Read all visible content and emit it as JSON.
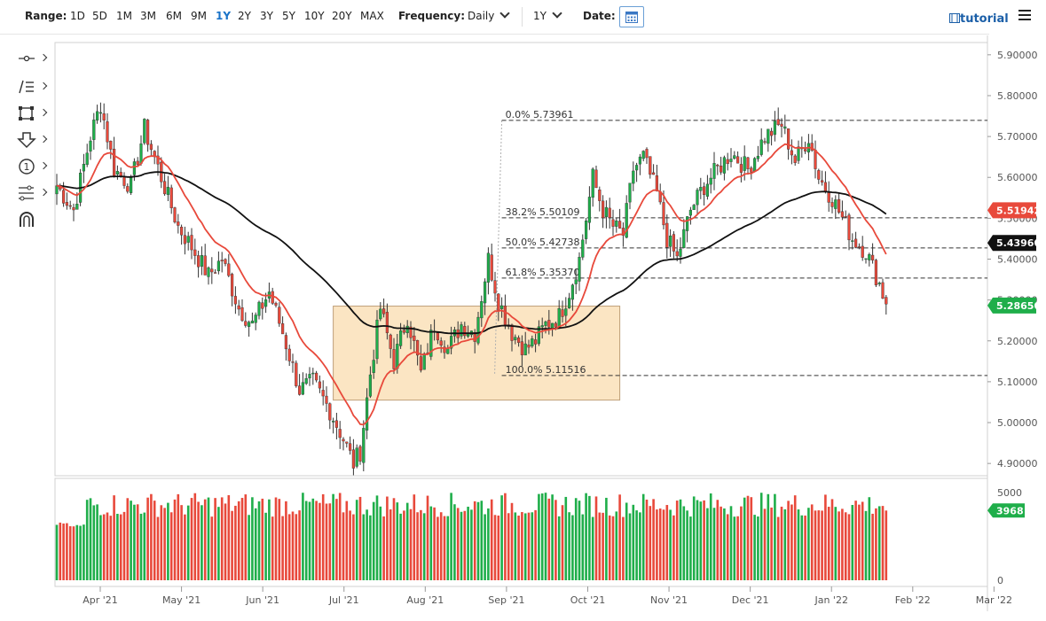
{
  "toolbar": {
    "range_label": "Range:",
    "ranges": [
      "1D",
      "5D",
      "1M",
      "3M",
      "6M",
      "9M",
      "1Y",
      "2Y",
      "3Y",
      "5Y",
      "10Y",
      "20Y",
      "MAX"
    ],
    "active_range": "1Y",
    "frequency_label": "Frequency:",
    "frequency_value": "Daily",
    "period_value": "1Y",
    "date_label": "Date:",
    "tutorial_label": "tutorial"
  },
  "drawing_tools": [
    "crosshair-icon",
    "trendline-list-icon",
    "rectangle-icon",
    "arrow-down-icon",
    "numbered-label-icon",
    "fibonacci-icon",
    "magnet-icon"
  ],
  "colors": {
    "up": "#1fae4a",
    "down": "#e8493b",
    "ma_fast": "#e8493b",
    "ma_slow": "#111111",
    "box_fill": "#fbe3bd",
    "box_stroke": "#b8956a",
    "accent": "#1a73c8"
  },
  "chart_data": {
    "type": "candlestick",
    "instrument_note": "",
    "ylim": [
      4.87,
      5.93
    ],
    "y_ticks": [
      "5.90000",
      "5.80000",
      "5.70000",
      "5.60000",
      "5.50000",
      "5.40000",
      "5.30000",
      "5.20000",
      "5.10000",
      "5.00000",
      "4.90000"
    ],
    "x_ticks": [
      "Apr '21",
      "May '21",
      "Jun '21",
      "Jul '21",
      "Aug '21",
      "Sep '21",
      "Oct '21",
      "Nov '21",
      "Dec '21",
      "Jan '22",
      "Feb '22",
      "Mar '22"
    ],
    "volume_ticks": [
      "5000",
      "0"
    ],
    "price_path": [
      [
        0,
        5.58
      ],
      [
        5,
        5.52
      ],
      [
        10,
        5.7
      ],
      [
        13,
        5.78
      ],
      [
        17,
        5.62
      ],
      [
        22,
        5.58
      ],
      [
        26,
        5.72
      ],
      [
        31,
        5.6
      ],
      [
        36,
        5.48
      ],
      [
        40,
        5.43
      ],
      [
        45,
        5.36
      ],
      [
        49,
        5.4
      ],
      [
        54,
        5.28
      ],
      [
        58,
        5.24
      ],
      [
        63,
        5.32
      ],
      [
        67,
        5.22
      ],
      [
        72,
        5.08
      ],
      [
        76,
        5.1
      ],
      [
        81,
        5.03
      ],
      [
        85,
        4.96
      ],
      [
        88,
        4.9
      ],
      [
        90,
        4.93
      ],
      [
        93,
        5.12
      ],
      [
        96,
        5.28
      ],
      [
        100,
        5.15
      ],
      [
        104,
        5.26
      ],
      [
        108,
        5.12
      ],
      [
        112,
        5.24
      ],
      [
        116,
        5.18
      ],
      [
        120,
        5.24
      ],
      [
        124,
        5.22
      ],
      [
        128,
        5.4
      ],
      [
        131,
        5.3
      ],
      [
        135,
        5.22
      ],
      [
        139,
        5.18
      ],
      [
        142,
        5.2
      ],
      [
        145,
        5.24
      ],
      [
        149,
        5.26
      ],
      [
        152,
        5.32
      ],
      [
        155,
        5.4
      ],
      [
        159,
        5.6
      ],
      [
        162,
        5.52
      ],
      [
        165,
        5.48
      ],
      [
        168,
        5.46
      ],
      [
        171,
        5.62
      ],
      [
        174,
        5.65
      ],
      [
        178,
        5.56
      ],
      [
        181,
        5.45
      ],
      [
        184,
        5.4
      ],
      [
        188,
        5.52
      ],
      [
        192,
        5.58
      ],
      [
        196,
        5.62
      ],
      [
        200,
        5.66
      ],
      [
        205,
        5.62
      ],
      [
        210,
        5.7
      ],
      [
        215,
        5.73
      ],
      [
        219,
        5.64
      ],
      [
        223,
        5.7
      ],
      [
        226,
        5.6
      ],
      [
        230,
        5.55
      ],
      [
        233,
        5.5
      ],
      [
        236,
        5.45
      ],
      [
        240,
        5.42
      ],
      [
        242,
        5.38
      ],
      [
        244,
        5.34
      ],
      [
        246,
        5.29
      ]
    ],
    "last_index": 246,
    "price_labels": [
      {
        "value": "5.51942",
        "series": "ma_fast"
      },
      {
        "value": "5.43960",
        "series": "ma_slow"
      },
      {
        "value": "5.28650",
        "series": "last"
      }
    ],
    "last_volume": "3968",
    "fibonacci": [
      {
        "label": "0.0% 5.73961",
        "value": 5.73961
      },
      {
        "label": "38.2% 5.50109",
        "value": 5.50109
      },
      {
        "label": "50.0% 5.42738",
        "value": 5.42738
      },
      {
        "label": "61.8% 5.35370",
        "value": 5.3537
      },
      {
        "label": "100.0% 5.11516",
        "value": 5.11516
      }
    ],
    "fib_range_index": [
      132,
      190
    ],
    "consolidation_box": {
      "x_index": [
        82,
        167
      ],
      "y_value": [
        5.055,
        5.285
      ]
    }
  }
}
